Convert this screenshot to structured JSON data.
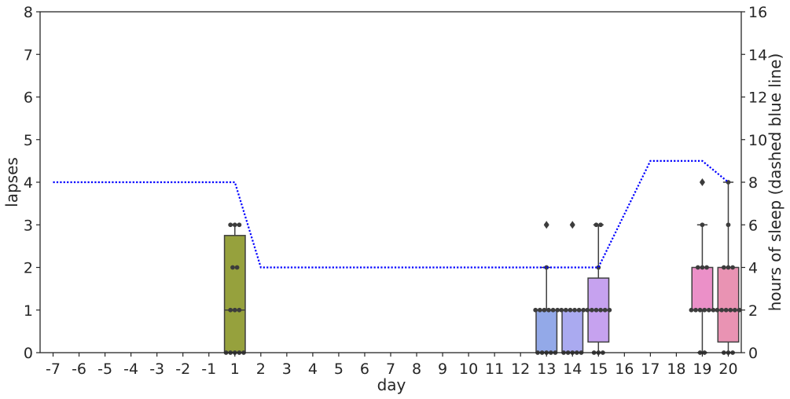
{
  "chart_data": {
    "type": "box",
    "xlabel": "day",
    "ylabel": "lapses",
    "y2label": "hours of sleep (dashed blue line)",
    "ylim": [
      0,
      8
    ],
    "y2lim": [
      0,
      16
    ],
    "yticks": [
      0,
      1,
      2,
      3,
      4,
      5,
      6,
      7,
      8
    ],
    "y2ticks": [
      0,
      2,
      4,
      6,
      8,
      10,
      12,
      14,
      16
    ],
    "categories": [
      "-7",
      "-6",
      "-5",
      "-4",
      "-3",
      "-2",
      "-1",
      "1",
      "2",
      "3",
      "4",
      "5",
      "6",
      "7",
      "8",
      "9",
      "10",
      "11",
      "12",
      "13",
      "14",
      "15",
      "16",
      "17",
      "18",
      "19",
      "20"
    ],
    "boxes": [
      {
        "day": "1",
        "q1": 0,
        "median": 1,
        "q3": 2.75,
        "whisker_low": 0,
        "whisker_high": 3,
        "outliers": [],
        "color": "#96a13d",
        "points": [
          0,
          0,
          0,
          0,
          0,
          1,
          1,
          1,
          2,
          2,
          3,
          3,
          3
        ]
      },
      {
        "day": "13",
        "q1": 0,
        "median": 1,
        "q3": 1,
        "whisker_low": 0,
        "whisker_high": 2,
        "outliers": [
          3
        ],
        "color": "#93a9e8",
        "points": [
          0,
          0,
          0,
          0,
          0,
          1,
          1,
          1,
          1,
          1,
          1,
          2,
          3
        ]
      },
      {
        "day": "14",
        "q1": 0,
        "median": 1,
        "q3": 1,
        "whisker_low": 0,
        "whisker_high": 1,
        "outliers": [
          3
        ],
        "color": "#aaaaf0",
        "points": [
          0,
          0,
          0,
          0,
          0,
          1,
          1,
          1,
          1,
          1,
          1,
          3
        ]
      },
      {
        "day": "15",
        "q1": 0.25,
        "median": 1,
        "q3": 1.75,
        "whisker_low": 0,
        "whisker_high": 3,
        "outliers": [],
        "color": "#c6a2ef",
        "points": [
          0,
          0,
          0,
          1,
          1,
          1,
          1,
          1,
          1,
          2,
          3,
          3
        ]
      },
      {
        "day": "19",
        "q1": 1,
        "median": 1,
        "q3": 2,
        "whisker_low": 0,
        "whisker_high": 3,
        "outliers": [
          4
        ],
        "color": "#eb90c8",
        "points": [
          0,
          0,
          1,
          1,
          1,
          1,
          1,
          1,
          2,
          2,
          2,
          3,
          4
        ]
      },
      {
        "day": "20",
        "q1": 0.25,
        "median": 1,
        "q3": 2,
        "whisker_low": 0,
        "whisker_high": 4,
        "outliers": [],
        "color": "#e993b3",
        "points": [
          0,
          0,
          0,
          1,
          1,
          1,
          1,
          1,
          1,
          2,
          2,
          2,
          3,
          4
        ]
      }
    ],
    "sleep_series": {
      "style": "dashed",
      "color": "#0000ff",
      "axis": "right",
      "x": [
        "-7",
        "1",
        "2",
        "3",
        "4",
        "5",
        "6",
        "7",
        "8",
        "9",
        "10",
        "11",
        "12",
        "13",
        "14",
        "15",
        "16",
        "17",
        "18",
        "19",
        "20"
      ],
      "values": [
        8,
        8,
        4,
        4,
        4,
        4,
        4,
        4,
        4,
        4,
        4,
        4,
        4,
        4,
        4,
        4,
        6.5,
        9,
        9,
        9,
        8
      ]
    }
  }
}
